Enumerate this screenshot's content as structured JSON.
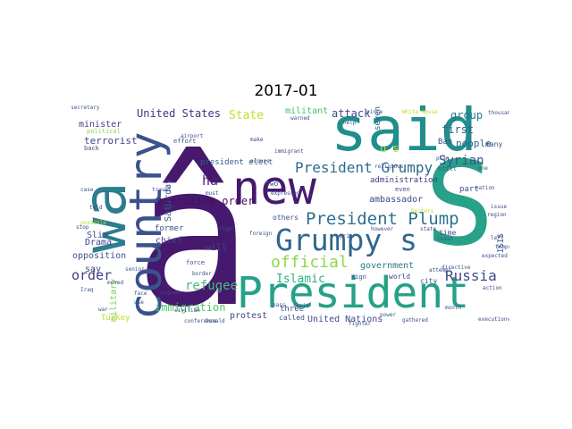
{
  "title": "2017-01",
  "words": [
    {
      "text": "â",
      "color": "#46186e"
    },
    {
      "text": "S",
      "color": "#27a187"
    },
    {
      "text": "said",
      "color": "#208f8c"
    },
    {
      "text": "new",
      "color": "#461a6e"
    },
    {
      "text": "wa",
      "color": "#2c7d8e"
    },
    {
      "text": "President",
      "color": "#26a188"
    },
    {
      "text": "country",
      "color": "#3b528b"
    },
    {
      "text": "Grumpy s",
      "color": "#31668e"
    },
    {
      "text": "President Grumpy",
      "color": "#2f6b8e"
    },
    {
      "text": "President Plump",
      "color": "#2d718e"
    },
    {
      "text": "official",
      "color": "#8fd744"
    },
    {
      "text": "executive order",
      "color": "#471063"
    },
    {
      "text": "United States",
      "color": "#46337e"
    },
    {
      "text": "State",
      "color": "#c2df23"
    },
    {
      "text": "refugee",
      "color": "#44bf70"
    },
    {
      "text": "Russia",
      "color": "#3e4c8a"
    },
    {
      "text": "ha",
      "color": "#482374"
    },
    {
      "text": "order",
      "color": "#433e85"
    },
    {
      "text": "Syrian",
      "color": "#3b528b"
    },
    {
      "text": "leader",
      "color": "#2c728e"
    },
    {
      "text": "immigration",
      "color": "#52c569"
    },
    {
      "text": "Islamic",
      "color": "#2db27d"
    },
    {
      "text": "group",
      "color": "#2a788e"
    },
    {
      "text": "attack",
      "color": "#3e4a89"
    },
    {
      "text": "first",
      "color": "#365c8d"
    },
    {
      "text": "people",
      "color": "#31688e"
    },
    {
      "text": "u s",
      "color": "#b5de2b"
    },
    {
      "text": "terrorist",
      "color": "#414487"
    },
    {
      "text": "minister",
      "color": "#424086"
    },
    {
      "text": "Saturday",
      "color": "#3b528b"
    },
    {
      "text": "president elect",
      "color": "#355f8d"
    },
    {
      "text": "administration",
      "color": "#443b84"
    },
    {
      "text": "ambassador",
      "color": "#3e4989"
    },
    {
      "text": "government",
      "color": "#2a788e"
    },
    {
      "text": "opposition",
      "color": "#3b528b"
    },
    {
      "text": "military",
      "color": "#7ad151"
    },
    {
      "text": "chief",
      "color": "#404688"
    },
    {
      "text": "Slim",
      "color": "#3f4788"
    },
    {
      "text": "will",
      "color": "#3e4c8a"
    },
    {
      "text": "say",
      "color": "#3e4989"
    },
    {
      "text": "Drama",
      "color": "#414487"
    },
    {
      "text": "part",
      "color": "#3e4c8a"
    },
    {
      "text": "ISIS",
      "color": "#3b528b"
    },
    {
      "text": "protest",
      "color": "#3e4989"
    },
    {
      "text": "United Nations",
      "color": "#3e4c8a"
    },
    {
      "text": "militant",
      "color": "#44bf70"
    },
    {
      "text": "seven",
      "color": "#365c8d"
    },
    {
      "text": "Ban",
      "color": "#3b528b"
    },
    {
      "text": "many",
      "color": "#3e4c8a"
    },
    {
      "text": "former",
      "color": "#3b528b"
    },
    {
      "text": "time",
      "color": "#3e4c8a"
    },
    {
      "text": "three",
      "color": "#3b528b"
    },
    {
      "text": "called",
      "color": "#3e4c8a"
    },
    {
      "text": "world",
      "color": "#3e4989"
    },
    {
      "text": "city",
      "color": "#3b528b"
    },
    {
      "text": "Turkey",
      "color": "#bddf26"
    },
    {
      "text": "two",
      "color": "#3e4c8a"
    },
    {
      "text": "others",
      "color": "#3b528b"
    },
    {
      "text": "even",
      "color": "#3e4c8a"
    },
    {
      "text": "still",
      "color": "#3b528b"
    },
    {
      "text": "force",
      "color": "#3e4c8a"
    },
    {
      "text": "sign",
      "color": "#3b528b"
    },
    {
      "text": "political",
      "color": "#8fd744"
    },
    {
      "text": "back",
      "color": "#3e4c8a"
    },
    {
      "text": "effort",
      "color": "#3b528b"
    },
    {
      "text": "ban",
      "color": "#3e4c8a"
    },
    {
      "text": "religious",
      "color": "#3b528b"
    },
    {
      "text": "civilian",
      "color": "#3e4c8a"
    },
    {
      "text": "least",
      "color": "#3b528b"
    },
    {
      "text": "execution",
      "color": "#3e4c8a"
    },
    {
      "text": "conference",
      "color": "#3b528b"
    },
    {
      "text": "Donald",
      "color": "#3e4c8a"
    },
    {
      "text": "White House",
      "color": "#bddf26"
    },
    {
      "text": "thousand",
      "color": "#3b528b"
    },
    {
      "text": "gathered",
      "color": "#3e4c8a"
    },
    {
      "text": "work",
      "color": "#3b528b"
    },
    {
      "text": "signed",
      "color": "#3e4c8a"
    },
    {
      "text": "secretary",
      "color": "#3b528b"
    },
    {
      "text": "expressed",
      "color": "#3e4c8a"
    },
    {
      "text": "foreign",
      "color": "#3b528b"
    },
    {
      "text": "immigrant",
      "color": "#3e4c8a"
    },
    {
      "text": "help",
      "color": "#3b528b"
    },
    {
      "text": "plan",
      "color": "#3e4c8a"
    },
    {
      "text": "face",
      "color": "#3b528b"
    },
    {
      "text": "airport",
      "color": "#3e4c8a"
    },
    {
      "text": "pass",
      "color": "#3b528b"
    },
    {
      "text": "Syria",
      "color": "#3e4c8a"
    },
    {
      "text": "Iraq",
      "color": "#3b528b"
    },
    {
      "text": "possible",
      "color": "#bddf26"
    },
    {
      "text": "border",
      "color": "#3b528b"
    },
    {
      "text": "left",
      "color": "#3e4c8a"
    },
    {
      "text": "issue",
      "color": "#3b528b"
    },
    {
      "text": "region",
      "color": "#3e4c8a"
    },
    {
      "text": "temporarily",
      "color": "#3b528b"
    },
    {
      "text": "directive",
      "color": "#3e4c8a"
    },
    {
      "text": "expected",
      "color": "#3b528b"
    },
    {
      "text": "attempt",
      "color": "#3e4c8a"
    },
    {
      "text": "power",
      "color": "#3b528b"
    },
    {
      "text": "action",
      "color": "#3e4c8a"
    },
    {
      "text": "senior",
      "color": "#3b528b"
    },
    {
      "text": "since",
      "color": "#3e4c8a"
    },
    {
      "text": "however",
      "color": "#3b528b"
    },
    {
      "text": "moved",
      "color": "#3e4c8a"
    },
    {
      "text": "use",
      "color": "#3b528b"
    },
    {
      "text": "told",
      "color": "#3e4c8a"
    },
    {
      "text": "must",
      "color": "#3b528b"
    },
    {
      "text": "across",
      "color": "#3e4c8a"
    },
    {
      "text": "one",
      "color": "#3b528b"
    },
    {
      "text": "Reuters",
      "color": "#bddf26"
    },
    {
      "text": "right",
      "color": "#3e4c8a"
    },
    {
      "text": "travel",
      "color": "#3b528b"
    },
    {
      "text": "prior",
      "color": "#3e4c8a"
    },
    {
      "text": "month",
      "color": "#3b528b"
    },
    {
      "text": "nation",
      "color": "#3e4c8a"
    },
    {
      "text": "case",
      "color": "#3b528b"
    },
    {
      "text": "stop",
      "color": "#3e4c8a"
    },
    {
      "text": "fighter",
      "color": "#3b528b"
    },
    {
      "text": "state",
      "color": "#3e4c8a"
    },
    {
      "text": "warned",
      "color": "#3b528b"
    },
    {
      "text": "make",
      "color": "#3e4c8a"
    },
    {
      "text": "war",
      "color": "#3b528b"
    },
    {
      "text": "aid",
      "color": "#3e4c8a"
    }
  ]
}
